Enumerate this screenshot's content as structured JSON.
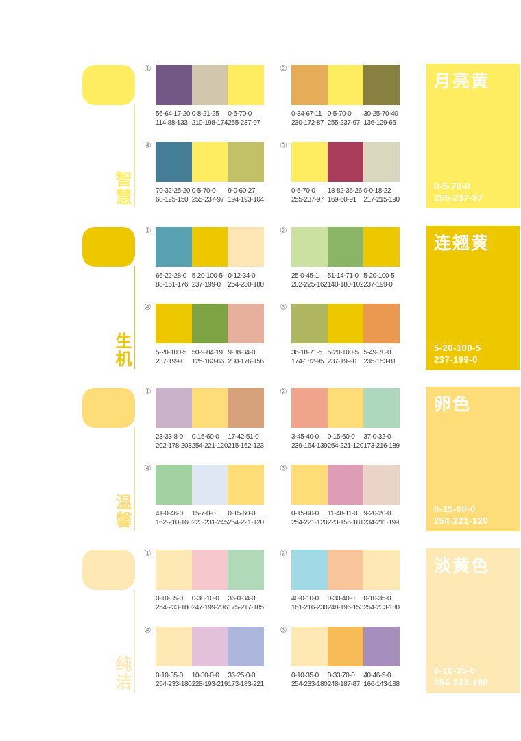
{
  "page": {
    "background": "#ffffff"
  },
  "sections": [
    {
      "keyword": "智慧",
      "block": {
        "title": "月亮黄",
        "cmyk": "0-5-70-0",
        "rgb": "255-237-97"
      },
      "palettes": [
        {
          "number": "①",
          "swatches": [
            {
              "cmyk": "56-64-17-20",
              "rgb": "114-88-133"
            },
            {
              "cmyk": "0-8-21-25",
              "rgb": "210-198-174"
            },
            {
              "cmyk": "0-5-70-0",
              "rgb": "255-237-97"
            }
          ]
        },
        {
          "number": "②",
          "swatches": [
            {
              "cmyk": "0-34-67-11",
              "rgb": "230-172-87"
            },
            {
              "cmyk": "0-5-70-0",
              "rgb": "255-237-97"
            },
            {
              "cmyk": "30-25-70-40",
              "rgb": "136-129-66"
            }
          ]
        },
        {
          "number": "④",
          "swatches": [
            {
              "cmyk": "70-32-25-20",
              "rgb": "68-125-150"
            },
            {
              "cmyk": "0-5-70-0",
              "rgb": "255-237-97"
            },
            {
              "cmyk": "9-0-60-27",
              "rgb": "194-193-104"
            }
          ]
        },
        {
          "number": "③",
          "swatches": [
            {
              "cmyk": "0-5-70-0",
              "rgb": "255-237-97"
            },
            {
              "cmyk": "18-82-36-26",
              "rgb": "169-60-91"
            },
            {
              "cmyk": "0-0-18-22",
              "rgb": "217-215-190"
            }
          ]
        }
      ]
    },
    {
      "keyword": "生机",
      "block": {
        "title": "连翘黄",
        "cmyk": "5-20-100-5",
        "rgb": "237-199-0"
      },
      "palettes": [
        {
          "number": "①",
          "swatches": [
            {
              "cmyk": "66-22-28-0",
              "rgb": "88-161-176"
            },
            {
              "cmyk": "5-20-100-5",
              "rgb": "237-199-0"
            },
            {
              "cmyk": "0-12-34-0",
              "rgb": "254-230-180"
            }
          ]
        },
        {
          "number": "②",
          "swatches": [
            {
              "cmyk": "25-0-45-1",
              "rgb": "202-225-162"
            },
            {
              "cmyk": "51-14-71-0",
              "rgb": "140-180-102"
            },
            {
              "cmyk": "5-20-100-5",
              "rgb": "237-199-0"
            }
          ]
        },
        {
          "number": "④",
          "swatches": [
            {
              "cmyk": "5-20-100-5",
              "rgb": "237-199-0"
            },
            {
              "cmyk": "50-9-84-19",
              "rgb": "125-163-66"
            },
            {
              "cmyk": "9-38-34-0",
              "rgb": "230-176-156"
            }
          ]
        },
        {
          "number": "③",
          "swatches": [
            {
              "cmyk": "36-18-71-5",
              "rgb": "174-182-95"
            },
            {
              "cmyk": "5-20-100-5",
              "rgb": "237-199-0"
            },
            {
              "cmyk": "5-49-70-0",
              "rgb": "235-153-81"
            }
          ]
        }
      ]
    },
    {
      "keyword": "温馨",
      "block": {
        "title": "卵色",
        "cmyk": "0-15-60-0",
        "rgb": "254-221-120"
      },
      "palettes": [
        {
          "number": "①",
          "swatches": [
            {
              "cmyk": "23-33-8-0",
              "rgb": "202-178-203"
            },
            {
              "cmyk": "0-15-60-0",
              "rgb": "254-221-120"
            },
            {
              "cmyk": "17-42-51-0",
              "rgb": "215-162-123"
            }
          ]
        },
        {
          "number": "②",
          "swatches": [
            {
              "cmyk": "3-45-40-0",
              "rgb": "239-164-139"
            },
            {
              "cmyk": "0-15-60-0",
              "rgb": "254-221-120"
            },
            {
              "cmyk": "37-0-32-0",
              "rgb": "173-216-189"
            }
          ]
        },
        {
          "number": "④",
          "swatches": [
            {
              "cmyk": "41-0-46-0",
              "rgb": "162-210-160"
            },
            {
              "cmyk": "15-7-0-0",
              "rgb": "223-231-245"
            },
            {
              "cmyk": "0-15-60-0",
              "rgb": "254-221-120"
            }
          ]
        },
        {
          "number": "③",
          "swatches": [
            {
              "cmyk": "0-15-60-0",
              "rgb": "254-221-120"
            },
            {
              "cmyk": "11-48-11-0",
              "rgb": "223-156-181"
            },
            {
              "cmyk": "9-20-20-0",
              "rgb": "234-211-199"
            }
          ]
        }
      ]
    },
    {
      "keyword": "纯洁",
      "block": {
        "title": "淡黄色",
        "cmyk": "0-10-35-0",
        "rgb": "254-233-180"
      },
      "palettes": [
        {
          "number": "①",
          "swatches": [
            {
              "cmyk": "0-10-35-0",
              "rgb": "254-233-180"
            },
            {
              "cmyk": "0-30-10-0",
              "rgb": "247-199-206"
            },
            {
              "cmyk": "36-0-34-0",
              "rgb": "175-217-185"
            }
          ]
        },
        {
          "number": "②",
          "swatches": [
            {
              "cmyk": "40-0-10-0",
              "rgb": "161-216-230"
            },
            {
              "cmyk": "0-30-40-0",
              "rgb": "248-196-153"
            },
            {
              "cmyk": "0-10-35-0",
              "rgb": "254-233-180"
            }
          ]
        },
        {
          "number": "④",
          "swatches": [
            {
              "cmyk": "0-10-35-0",
              "rgb": "254-233-180"
            },
            {
              "cmyk": "10-30-0-0",
              "rgb": "228-193-219"
            },
            {
              "cmyk": "36-25-0-0",
              "rgb": "173-183-221"
            }
          ]
        },
        {
          "number": "③",
          "swatches": [
            {
              "cmyk": "0-10-35-0",
              "rgb": "254-233-180"
            },
            {
              "cmyk": "0-33-70-0",
              "rgb": "248-187-87"
            },
            {
              "cmyk": "40-46-5-0",
              "rgb": "166-143-188"
            }
          ]
        }
      ]
    }
  ]
}
